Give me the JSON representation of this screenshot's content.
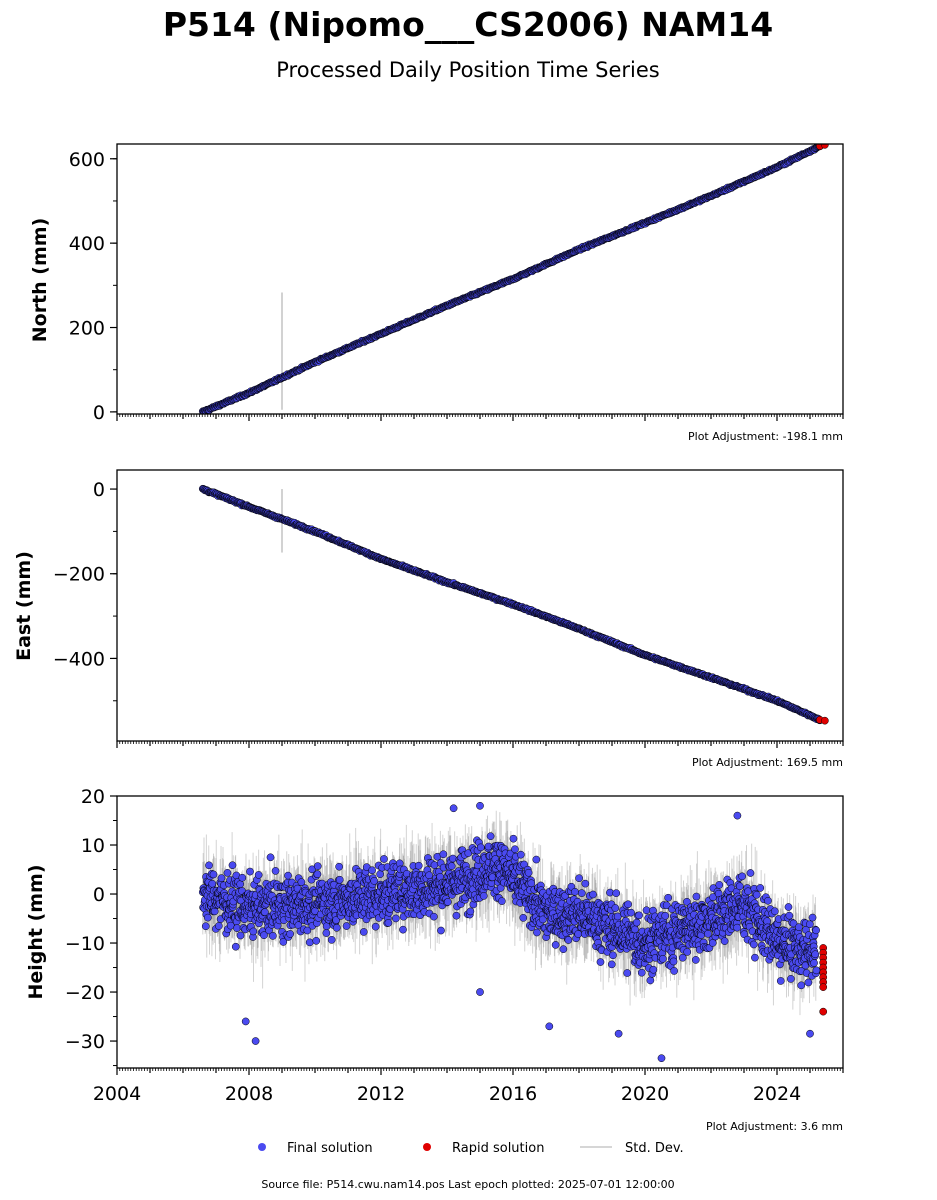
{
  "title": "P514 (Nipomo___CS2006) NAM14",
  "subtitle": "Processed Daily Position Time Series",
  "legend": {
    "final": "Final solution",
    "rapid": "Rapid solution",
    "std": "Std. Dev."
  },
  "footer": "Source file: P514.cwu.nam14.pos  Last epoch plotted: 2025-07-01 12:00:00",
  "colors": {
    "final": "#4a4af0",
    "rapid": "#e00000",
    "std": "#b4b4b4",
    "edge": "#000000"
  },
  "chart_data": [
    {
      "type": "scatter",
      "ylabel": "North (mm)",
      "adjustment": "Plot Adjustment: -198.1 mm",
      "xlim": [
        2004.0,
        2026.0
      ],
      "ylim": [
        -5,
        635
      ],
      "yticks": [
        0,
        200,
        400,
        600
      ],
      "yticklabels": [
        "0",
        "200",
        "400",
        "600"
      ],
      "series": [
        {
          "name": "Final solution",
          "x": [
            2006.6,
            2008.0,
            2010.0,
            2012.0,
            2014.0,
            2016.0,
            2018.0,
            2020.0,
            2022.0,
            2024.0,
            2025.3
          ],
          "y": [
            0,
            45,
            118,
            185,
            252,
            315,
            385,
            448,
            512,
            580,
            630
          ]
        },
        {
          "name": "Rapid solution",
          "x": [
            2025.3,
            2025.45
          ],
          "y": [
            630,
            633
          ]
        }
      ],
      "spike": {
        "x": 2009.0,
        "low": 5,
        "high": 283
      }
    },
    {
      "type": "scatter",
      "ylabel": "East (mm)",
      "adjustment": "Plot Adjustment: 169.5 mm",
      "xlim": [
        2004.0,
        2026.0
      ],
      "ylim": [
        -595,
        45
      ],
      "yticks": [
        0,
        -200,
        -400
      ],
      "yticklabels": [
        "0",
        "−200",
        "−400"
      ],
      "series": [
        {
          "name": "Final solution",
          "x": [
            2006.6,
            2008.0,
            2010.0,
            2012.0,
            2014.0,
            2016.0,
            2018.0,
            2020.0,
            2022.0,
            2024.0,
            2025.3
          ],
          "y": [
            0,
            -42,
            -100,
            -165,
            -220,
            -272,
            -330,
            -392,
            -445,
            -500,
            -545
          ]
        },
        {
          "name": "Rapid solution",
          "x": [
            2025.3,
            2025.45
          ],
          "y": [
            -545,
            -547
          ]
        }
      ],
      "spike": {
        "x": 2009.0,
        "low": -150,
        "high": 0
      }
    },
    {
      "type": "scatter",
      "ylabel": "Height (mm)",
      "adjustment": "Plot Adjustment: 3.6 mm",
      "xlim": [
        2004.0,
        2026.0
      ],
      "ylim": [
        -35.5,
        20
      ],
      "yticks": [
        20,
        10,
        0,
        -10,
        -20,
        -30
      ],
      "yticklabels": [
        "20",
        "10",
        "0",
        "−10",
        "−20",
        "−30"
      ],
      "xticks": [
        2004,
        2008,
        2012,
        2016,
        2020,
        2024
      ],
      "xticklabels": [
        "2004",
        "2008",
        "2012",
        "2016",
        "2020",
        "2024"
      ],
      "series": [
        {
          "name": "Final solution",
          "x": [
            2006.6,
            2008.0,
            2010.0,
            2012.0,
            2014.0,
            2015.6,
            2017.0,
            2018.0,
            2020.0,
            2022.0,
            2023.0,
            2024.0,
            2025.2
          ],
          "y": [
            0,
            -3,
            -2,
            0,
            2,
            6,
            -4,
            -4,
            -10,
            -5,
            -2,
            -10,
            -12
          ]
        },
        {
          "name": "Rapid solution",
          "x": [
            2025.4,
            2025.4,
            2025.4,
            2025.4,
            2025.4,
            2025.4,
            2025.4,
            2025.4,
            2025.4,
            2025.4
          ],
          "y": [
            -11,
            -12,
            -13,
            -14,
            -15,
            -16,
            -17,
            -18,
            -19,
            -24
          ]
        }
      ],
      "outliers": [
        {
          "x": 2007.9,
          "y": -26
        },
        {
          "x": 2008.2,
          "y": -30
        },
        {
          "x": 2014.2,
          "y": 17.5
        },
        {
          "x": 2015.0,
          "y": 18
        },
        {
          "x": 2015.0,
          "y": -20
        },
        {
          "x": 2017.1,
          "y": -27
        },
        {
          "x": 2019.2,
          "y": -28.5
        },
        {
          "x": 2020.5,
          "y": -33.5
        },
        {
          "x": 2022.8,
          "y": 16
        },
        {
          "x": 2025.0,
          "y": -28.5
        }
      ]
    }
  ]
}
